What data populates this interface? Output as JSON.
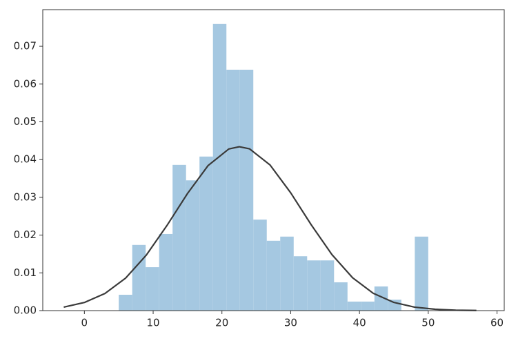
{
  "chart_data": {
    "type": "histogram",
    "bins": [
      5,
      6.957,
      8.913,
      10.87,
      12.826,
      14.783,
      16.739,
      18.696,
      20.652,
      22.609,
      24.565,
      26.522,
      28.478,
      30.435,
      32.391,
      34.348,
      36.304,
      38.261,
      40.217,
      42.174,
      44.13,
      46.087,
      48.043,
      50
    ],
    "values": [
      0.0042,
      0.0174,
      0.0115,
      0.0203,
      0.0386,
      0.0345,
      0.0408,
      0.0759,
      0.0638,
      0.0638,
      0.0241,
      0.0185,
      0.0196,
      0.0144,
      0.0133,
      0.0133,
      0.0075,
      0.0024,
      0.0024,
      0.0064,
      0.0029,
      0,
      0.0196
    ],
    "color": "#a5c8e1",
    "fit": {
      "color": "#3a3a3a",
      "x": [
        -3,
        0,
        3,
        6,
        9,
        12,
        15,
        18,
        21,
        22.53,
        24,
        27,
        30,
        33,
        36,
        39,
        42,
        45,
        48,
        51,
        54,
        57
      ],
      "y": [
        0.00092,
        0.00215,
        0.00454,
        0.00861,
        0.01469,
        0.02252,
        0.03103,
        0.03844,
        0.04281,
        0.04341,
        0.04286,
        0.03857,
        0.0312,
        0.02269,
        0.01483,
        0.00871,
        0.0046,
        0.00218,
        0.00093,
        0.00036,
        0.00012,
        4e-05
      ]
    },
    "xlim": [
      -6.05,
      61.05
    ],
    "ylim": [
      0,
      0.0797
    ],
    "xticks": [
      0,
      10,
      20,
      30,
      40,
      50,
      60
    ],
    "yticks": [
      {
        "value": 0,
        "label": "0.00"
      },
      {
        "value": 0.01,
        "label": "0.01"
      },
      {
        "value": 0.02,
        "label": "0.02"
      },
      {
        "value": 0.03,
        "label": "0.03"
      },
      {
        "value": 0.04,
        "label": "0.04"
      },
      {
        "value": 0.05,
        "label": "0.05"
      },
      {
        "value": 0.06,
        "label": "0.06"
      },
      {
        "value": 0.07,
        "label": "0.07"
      }
    ]
  }
}
